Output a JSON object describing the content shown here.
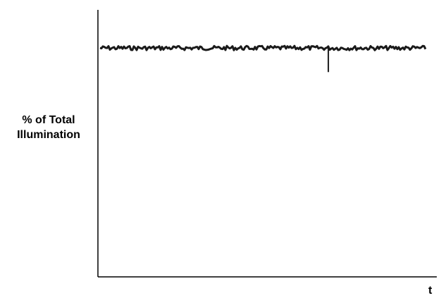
{
  "chart_data": {
    "type": "line",
    "title": "",
    "xlabel": "t",
    "ylabel_line1": "% of Total",
    "ylabel_line2": "Illumination",
    "ylim": [
      0,
      1
    ],
    "xlim": [
      0,
      1
    ],
    "grid": false,
    "series": [
      {
        "baseline": 0.857,
        "noise_amplitude": 0.008,
        "dip": {
          "x": 0.68,
          "y": 0.767
        }
      }
    ],
    "color": "#1a1a1a"
  }
}
